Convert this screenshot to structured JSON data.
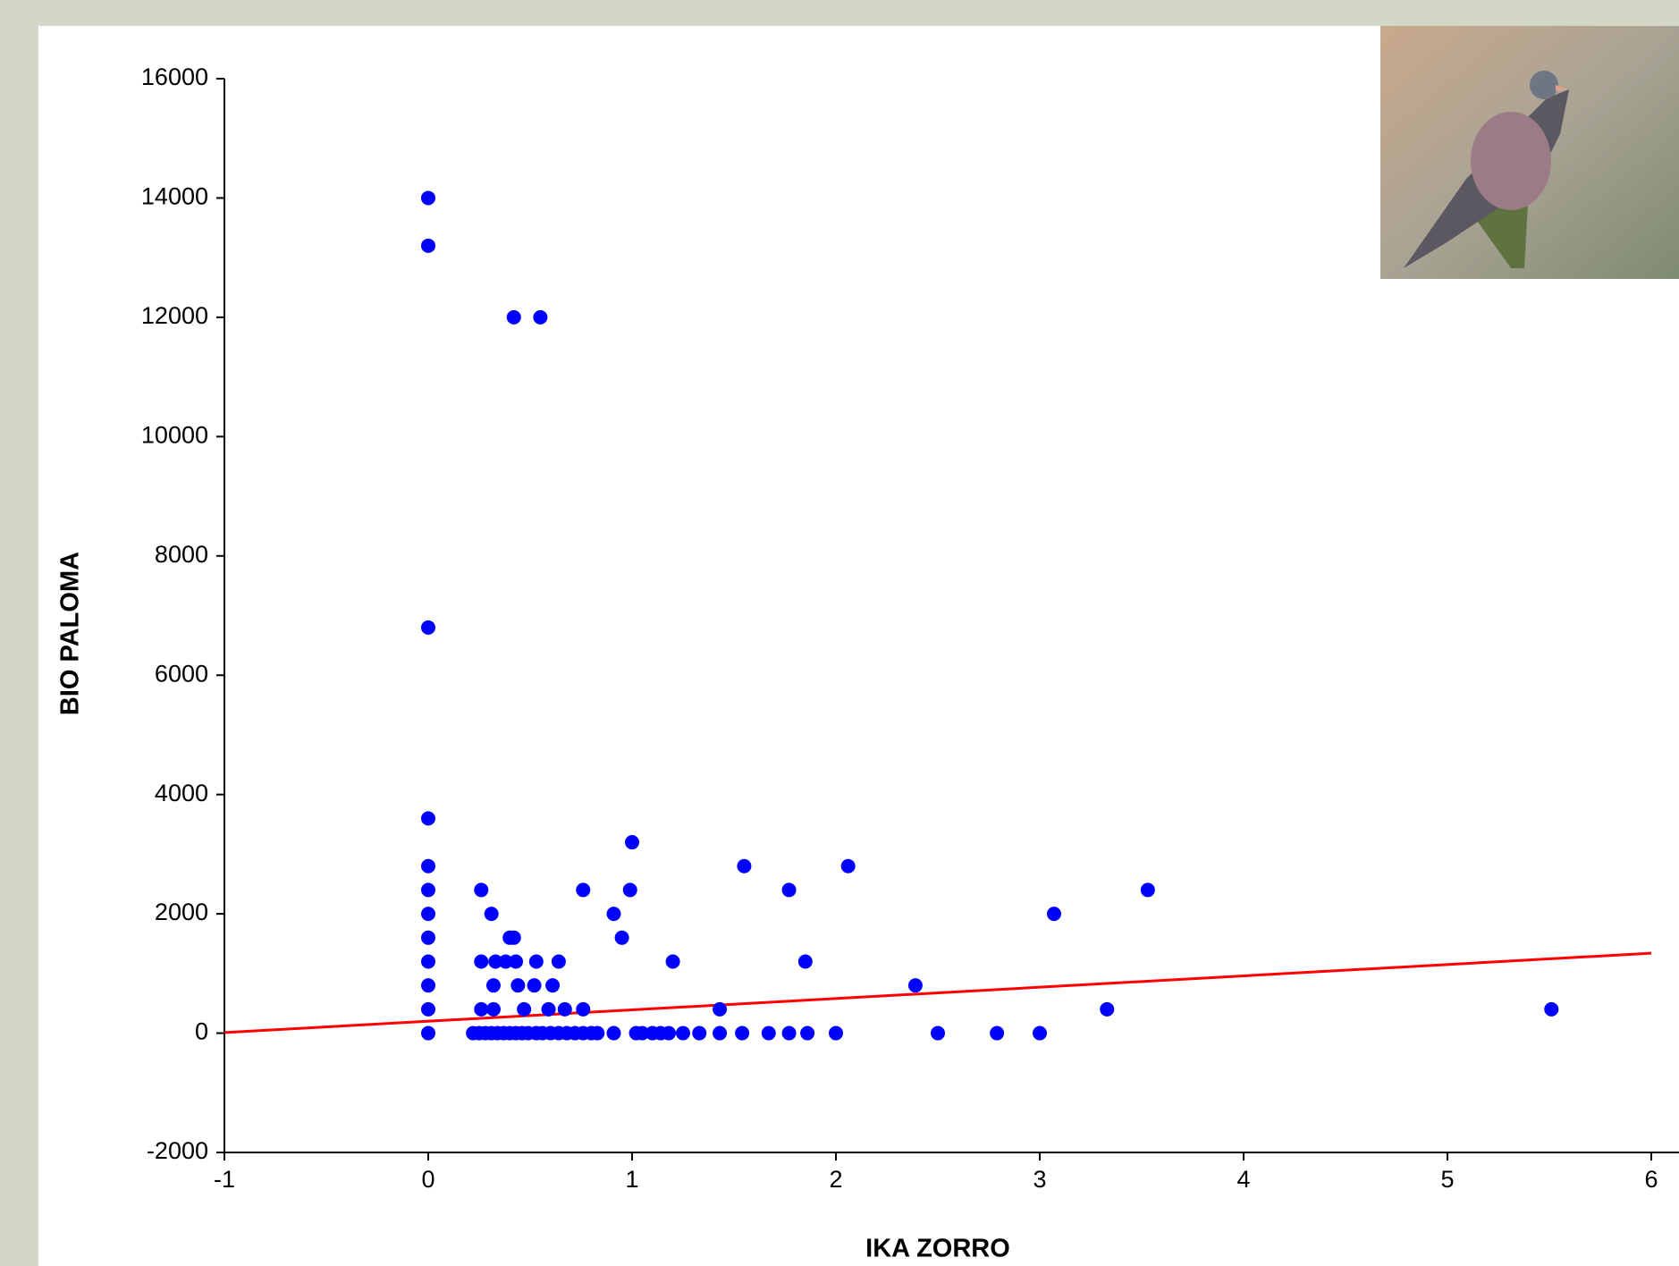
{
  "chart_data": {
    "type": "scatter",
    "x_label": "IKA ZORRO",
    "y_label": "BIO PALOMA",
    "xlim": [
      -1,
      6
    ],
    "ylim": [
      -2000,
      16000
    ],
    "xticks": [
      -1,
      0,
      1,
      2,
      3,
      4,
      5,
      6
    ],
    "yticks": [
      -2000,
      0,
      2000,
      4000,
      6000,
      8000,
      10000,
      12000,
      14000,
      16000
    ],
    "points": {
      "color": "#0000ff",
      "x": [
        0,
        0,
        0,
        0,
        0,
        0,
        0,
        0,
        0,
        0,
        0,
        0,
        0.42,
        0.55,
        0.26,
        0.31,
        0.4,
        0.42,
        0.95,
        0.26,
        0.33,
        0.38,
        0.43,
        0.53,
        0.64,
        1.2,
        1.85,
        0.32,
        0.44,
        0.52,
        0.61,
        2.39,
        0.26,
        0.32,
        0.47,
        0.59,
        0.67,
        0.76,
        1.43,
        3.33,
        5.51,
        0.76,
        0.99,
        1.77,
        3.53,
        0.91,
        3.07,
        1.55,
        2.06,
        1.0,
        0.22,
        0.25,
        0.28,
        0.31,
        0.34,
        0.37,
        0.4,
        0.43,
        0.46,
        0.49,
        0.53,
        0.56,
        0.6,
        0.64,
        0.68,
        0.72,
        0.76,
        0.8,
        0.83,
        0.91,
        1.02,
        1.05,
        1.1,
        1.14,
        1.18,
        1.25,
        1.33,
        1.43,
        1.54,
        1.67,
        1.77,
        1.86,
        2.0,
        2.5,
        2.79,
        3.0
      ],
      "y": [
        14000,
        13200,
        6800,
        3600,
        2800,
        2400,
        2000,
        1600,
        1200,
        800,
        400,
        0,
        12000,
        12000,
        2400,
        2000,
        1600,
        1600,
        1600,
        1200,
        1200,
        1200,
        1200,
        1200,
        1200,
        1200,
        1200,
        800,
        800,
        800,
        800,
        800,
        400,
        400,
        400,
        400,
        400,
        400,
        400,
        400,
        400,
        2400,
        2400,
        2400,
        2400,
        2000,
        2000,
        2800,
        2800,
        3200,
        0,
        0,
        0,
        0,
        0,
        0,
        0,
        0,
        0,
        0,
        0,
        0,
        0,
        0,
        0,
        0,
        0,
        0,
        0,
        0,
        0,
        0,
        0,
        0,
        0,
        0,
        0,
        0,
        0,
        0,
        0,
        0,
        0,
        0,
        0,
        0
      ]
    },
    "trend_line": {
      "color": "#ff0000",
      "x": [
        -1,
        6
      ],
      "y": [
        10,
        1340
      ]
    }
  }
}
